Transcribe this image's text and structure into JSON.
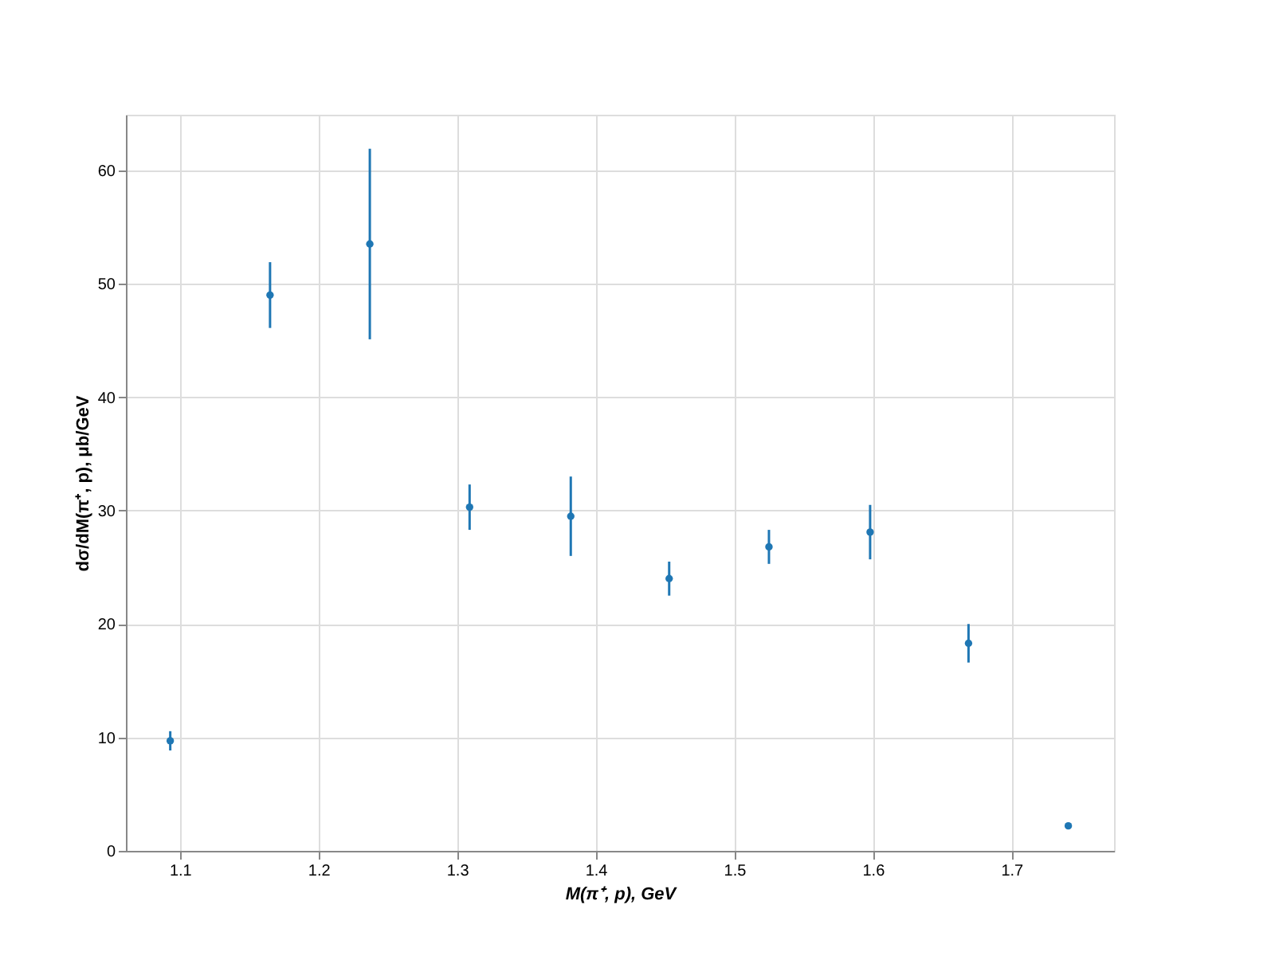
{
  "chart_data": {
    "type": "scatter",
    "xlabel": "M(π⁺, p), GeV",
    "ylabel": "dσ/dM(π⁺, p), μb/GeV",
    "x": [
      1.093,
      1.165,
      1.237,
      1.309,
      1.382,
      1.453,
      1.525,
      1.598,
      1.669,
      1.741
    ],
    "series": [
      {
        "color": "#1f77b4",
        "values": [
          9.7,
          49.0,
          53.5,
          30.3,
          29.5,
          24.0,
          26.8,
          28.1,
          18.3,
          2.2
        ],
        "errors": [
          0.85,
          2.9,
          8.4,
          2.0,
          3.5,
          1.5,
          1.5,
          2.4,
          1.7,
          null
        ]
      }
    ],
    "xlim": [
      1.061,
      1.774
    ],
    "ylim": [
      0,
      64.9
    ],
    "xticks": [
      1.1,
      1.2,
      1.3,
      1.4,
      1.5,
      1.6,
      1.7
    ],
    "yticks": [
      0,
      10,
      20,
      30,
      40,
      50,
      60
    ],
    "grid": true,
    "marker": "circle"
  }
}
